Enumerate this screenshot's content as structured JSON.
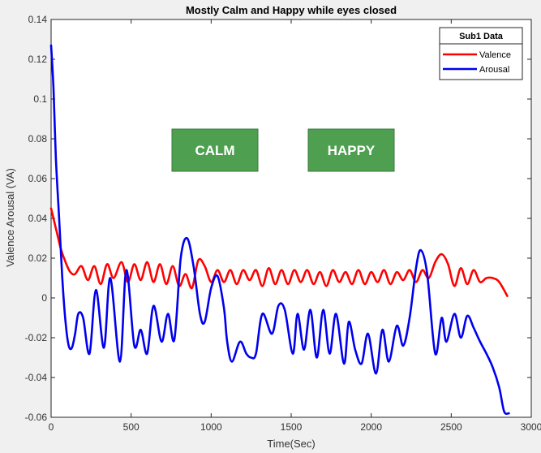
{
  "chart_data": {
    "type": "line",
    "title": "Mostly Calm and Happy while eyes closed",
    "xlabel": "Time(Sec)",
    "ylabel": "Valence Arousal (VA)",
    "xlim": [
      0,
      3000
    ],
    "ylim": [
      -0.06,
      0.14
    ],
    "xticks": [
      "0",
      "500",
      "1000",
      "1500",
      "2000",
      "2500",
      "3000"
    ],
    "yticks": [
      "-0.06",
      "-0.04",
      "-0.02",
      "0",
      "0.02",
      "0.04",
      "0.06",
      "0.08",
      "0.1",
      "0.12",
      "0.14"
    ],
    "grid": false,
    "legend": {
      "title": "Sub1 Data",
      "position": "top-right"
    },
    "annotations": [
      {
        "text": "CALM",
        "color": "#4ea050"
      },
      {
        "text": "HAPPY",
        "color": "#4ea050"
      }
    ],
    "series": [
      {
        "name": "Valence",
        "color": "#ff0000",
        "x": [
          0,
          30,
          60,
          90,
          120,
          150,
          190,
          230,
          270,
          310,
          350,
          390,
          440,
          480,
          520,
          560,
          600,
          640,
          680,
          720,
          760,
          800,
          840,
          880,
          920,
          960,
          1000,
          1040,
          1080,
          1120,
          1160,
          1200,
          1240,
          1280,
          1320,
          1360,
          1400,
          1440,
          1480,
          1520,
          1560,
          1600,
          1640,
          1680,
          1720,
          1760,
          1800,
          1840,
          1880,
          1920,
          1960,
          2000,
          2040,
          2080,
          2120,
          2160,
          2200,
          2240,
          2280,
          2320,
          2360,
          2400,
          2440,
          2480,
          2520,
          2560,
          2600,
          2640,
          2680,
          2720,
          2760,
          2800,
          2850
        ],
        "values": [
          0.045,
          0.035,
          0.025,
          0.018,
          0.013,
          0.012,
          0.016,
          0.009,
          0.016,
          0.007,
          0.017,
          0.01,
          0.018,
          0.008,
          0.017,
          0.009,
          0.018,
          0.008,
          0.017,
          0.007,
          0.016,
          0.006,
          0.012,
          0.005,
          0.019,
          0.016,
          0.008,
          0.014,
          0.008,
          0.014,
          0.007,
          0.014,
          0.009,
          0.014,
          0.006,
          0.015,
          0.007,
          0.014,
          0.007,
          0.014,
          0.008,
          0.014,
          0.007,
          0.013,
          0.006,
          0.014,
          0.008,
          0.013,
          0.007,
          0.014,
          0.007,
          0.013,
          0.008,
          0.014,
          0.007,
          0.013,
          0.009,
          0.014,
          0.008,
          0.014,
          0.01,
          0.018,
          0.022,
          0.017,
          0.006,
          0.015,
          0.007,
          0.014,
          0.008,
          0.01,
          0.01,
          0.008,
          0.001
        ]
      },
      {
        "name": "Arousal",
        "color": "#0000ee",
        "x": [
          0,
          15,
          30,
          50,
          70,
          90,
          110,
          130,
          150,
          170,
          200,
          240,
          280,
          330,
          370,
          430,
          470,
          520,
          560,
          600,
          640,
          690,
          730,
          770,
          810,
          850,
          890,
          930,
          960,
          1000,
          1040,
          1080,
          1100,
          1130,
          1180,
          1220,
          1250,
          1280,
          1320,
          1380,
          1420,
          1460,
          1510,
          1540,
          1580,
          1620,
          1660,
          1700,
          1740,
          1780,
          1830,
          1860,
          1900,
          1940,
          1980,
          2030,
          2070,
          2110,
          2160,
          2200,
          2240,
          2280,
          2310,
          2350,
          2400,
          2440,
          2470,
          2520,
          2560,
          2600,
          2640,
          2680,
          2720,
          2760,
          2800,
          2830,
          2860
        ],
        "values": [
          0.127,
          0.105,
          0.07,
          0.04,
          0.01,
          -0.012,
          -0.024,
          -0.025,
          -0.018,
          -0.008,
          -0.01,
          -0.028,
          0.004,
          -0.025,
          0.01,
          -0.032,
          0.014,
          -0.024,
          -0.016,
          -0.028,
          -0.004,
          -0.022,
          -0.008,
          -0.021,
          0.02,
          0.03,
          0.016,
          -0.008,
          -0.012,
          0.005,
          0.011,
          -0.005,
          -0.022,
          -0.032,
          -0.022,
          -0.028,
          -0.03,
          -0.028,
          -0.008,
          -0.018,
          -0.004,
          -0.006,
          -0.028,
          -0.008,
          -0.026,
          -0.006,
          -0.03,
          -0.006,
          -0.028,
          -0.008,
          -0.033,
          -0.012,
          -0.026,
          -0.033,
          -0.018,
          -0.038,
          -0.016,
          -0.032,
          -0.014,
          -0.024,
          -0.01,
          0.015,
          0.024,
          0.012,
          -0.028,
          -0.01,
          -0.022,
          -0.008,
          -0.02,
          -0.009,
          -0.015,
          -0.022,
          -0.028,
          -0.035,
          -0.045,
          -0.057,
          -0.058
        ]
      }
    ]
  }
}
